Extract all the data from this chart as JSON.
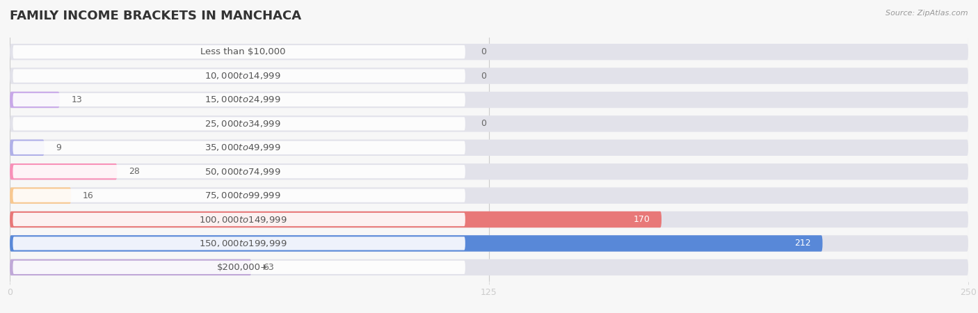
{
  "title": "FAMILY INCOME BRACKETS IN MANCHACA",
  "source": "Source: ZipAtlas.com",
  "categories": [
    "Less than $10,000",
    "$10,000 to $14,999",
    "$15,000 to $24,999",
    "$25,000 to $34,999",
    "$35,000 to $49,999",
    "$50,000 to $74,999",
    "$75,000 to $99,999",
    "$100,000 to $149,999",
    "$150,000 to $199,999",
    "$200,000+"
  ],
  "values": [
    0,
    0,
    13,
    0,
    9,
    28,
    16,
    170,
    212,
    63
  ],
  "bar_colors": [
    "#f4a8a8",
    "#a8c0e8",
    "#c8a8e8",
    "#78d8cc",
    "#b0b0e8",
    "#f890b8",
    "#f8c890",
    "#e87878",
    "#5888d8",
    "#c0a8d8"
  ],
  "xlim": [
    0,
    250
  ],
  "xticks": [
    0,
    125,
    250
  ],
  "bg_color": "#f7f7f7",
  "bar_bg_color": "#e2e2ea",
  "title_fontsize": 13,
  "label_fontsize": 9.5,
  "value_fontsize": 9.0
}
